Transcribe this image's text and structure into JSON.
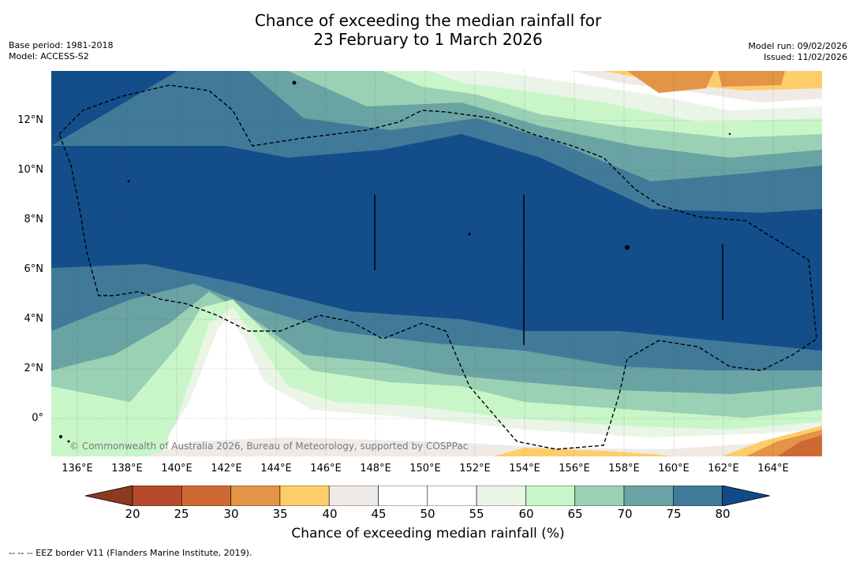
{
  "title_line1": "Chance of exceeding the median rainfall for",
  "title_line2": "23 February to 1 March 2026",
  "meta": {
    "base_period": "Base period: 1981-2018",
    "model": "Model: ACCESS-S2",
    "model_run": "Model run: 09/02/2026",
    "issued": "Issued: 11/02/2026"
  },
  "lat_labels": [
    "12°N",
    "10°N",
    "8°N",
    "6°N",
    "4°N",
    "2°N",
    "0°"
  ],
  "lon_labels": [
    "136°E",
    "138°E",
    "140°E",
    "142°E",
    "144°E",
    "146°E",
    "148°E",
    "150°E",
    "152°E",
    "154°E",
    "156°E",
    "158°E",
    "160°E",
    "162°E",
    "164°E"
  ],
  "copyright": "© Commonwealth of Australia 2026, Bureau of Meteorology, supported by COSPPac",
  "colorbar": {
    "ticks": [
      "20",
      "25",
      "30",
      "35",
      "40",
      "45",
      "50",
      "55",
      "60",
      "65",
      "70",
      "75",
      "80"
    ],
    "colors": [
      "#b44a2a",
      "#cf6934",
      "#e39446",
      "#fdcd6a",
      "#efeae6",
      "#ffffff",
      "#ffffff",
      "#eaf5e7",
      "#c8f6c8",
      "#9ad1b5",
      "#6aa3a3",
      "#417a99",
      "#134e8b"
    ],
    "under_color": "#8c3a20",
    "over_color": "#104a87",
    "label": "Chance of exceeding median rainfall (%)"
  },
  "footer": "--  --  -- EEZ border V11 (Flanders Marine Institute, 2019)."
}
